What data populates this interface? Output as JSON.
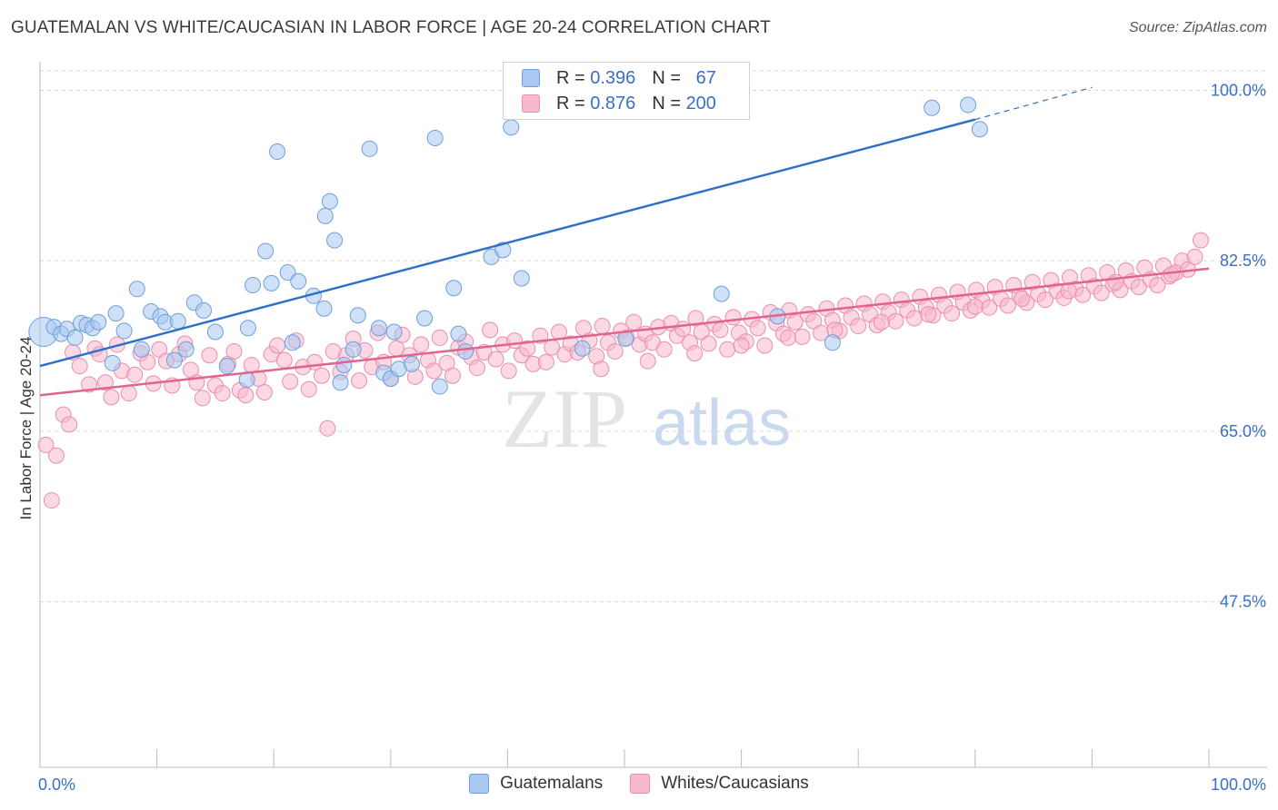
{
  "header": {
    "title": "GUATEMALAN VS WHITE/CAUCASIAN IN LABOR FORCE | AGE 20-24 CORRELATION CHART",
    "source": "Source: ZipAtlas.com"
  },
  "watermark": {
    "zip": "ZIP",
    "atlas": "atlas"
  },
  "legend": {
    "rows": [
      {
        "r_label": "R =",
        "r_value": "0.396",
        "n_label": "N =",
        "n_value": "67"
      },
      {
        "r_label": "R =",
        "r_value": "0.876",
        "n_label": "N =",
        "n_value": "200"
      }
    ]
  },
  "bottom_legend": [
    "Guatemalans",
    "Whites/Caucasians"
  ],
  "colors": {
    "blue_fill": "#a8c8f0",
    "blue_stroke": "#6f9fdc",
    "blue_line": "#2f6fc9",
    "pink_fill": "#f7b8cc",
    "pink_stroke": "#ea8fae",
    "pink_line": "#e0648f",
    "tick_text": "#3a6fc4",
    "grid": "#d9d9d9"
  },
  "chart_data": {
    "type": "scatter",
    "title": "GUATEMALAN VS WHITE/CAUCASIAN IN LABOR FORCE | AGE 20-24 CORRELATION CHART",
    "xlabel": "",
    "ylabel": "In Labor Force | Age 20-24",
    "xlim": [
      0,
      100
    ],
    "ylim": [
      30.5,
      102
    ],
    "x_tick_labels": [
      "0.0%",
      "100.0%"
    ],
    "y_ticks": [
      47.5,
      65.0,
      82.5,
      100.0
    ],
    "y_tick_labels": [
      "47.5%",
      "65.0%",
      "82.5%",
      "100.0%"
    ],
    "grid": true,
    "legend_position": "top-center",
    "series": [
      {
        "name": "Guatemalans",
        "color": "#a8c8f0",
        "trend": {
          "x0": 0,
          "y0": 71.7,
          "x1": 80,
          "y1": 97.0,
          "dashed_to_x": 90,
          "dashed_to_y": 100.3
        },
        "points": [
          [
            0.3,
            75.2
          ],
          [
            1.2,
            75.7
          ],
          [
            1.8,
            75.0
          ],
          [
            2.3,
            75.5
          ],
          [
            3.5,
            76.1
          ],
          [
            4.0,
            75.9
          ],
          [
            4.5,
            75.6
          ],
          [
            5.0,
            76.2
          ],
          [
            3.0,
            74.6
          ],
          [
            6.5,
            77.1
          ],
          [
            7.2,
            75.3
          ],
          [
            6.2,
            72.0
          ],
          [
            8.3,
            79.6
          ],
          [
            8.7,
            73.4
          ],
          [
            9.5,
            77.3
          ],
          [
            10.3,
            76.8
          ],
          [
            10.7,
            76.2
          ],
          [
            11.5,
            72.3
          ],
          [
            11.8,
            76.3
          ],
          [
            12.5,
            73.4
          ],
          [
            13.2,
            78.2
          ],
          [
            14.0,
            77.4
          ],
          [
            15.0,
            75.2
          ],
          [
            16.0,
            71.7
          ],
          [
            17.7,
            70.3
          ],
          [
            17.8,
            75.6
          ],
          [
            18.2,
            80.0
          ],
          [
            19.3,
            83.5
          ],
          [
            19.8,
            80.2
          ],
          [
            20.3,
            93.7
          ],
          [
            21.2,
            81.3
          ],
          [
            21.6,
            74.1
          ],
          [
            22.1,
            80.4
          ],
          [
            23.4,
            78.9
          ],
          [
            24.4,
            87.1
          ],
          [
            24.8,
            88.6
          ],
          [
            24.3,
            77.6
          ],
          [
            25.2,
            84.6
          ],
          [
            25.7,
            70.0
          ],
          [
            26.0,
            71.8
          ],
          [
            26.8,
            73.4
          ],
          [
            27.2,
            76.9
          ],
          [
            28.2,
            94.0
          ],
          [
            29.0,
            75.6
          ],
          [
            29.4,
            71.0
          ],
          [
            30.0,
            70.4
          ],
          [
            30.3,
            75.2
          ],
          [
            30.7,
            71.4
          ],
          [
            31.8,
            71.9
          ],
          [
            32.9,
            76.6
          ],
          [
            33.8,
            95.1
          ],
          [
            34.2,
            69.6
          ],
          [
            35.4,
            79.7
          ],
          [
            35.8,
            75.0
          ],
          [
            36.4,
            73.2
          ],
          [
            38.6,
            82.9
          ],
          [
            39.6,
            83.6
          ],
          [
            40.3,
            96.2
          ],
          [
            41.2,
            80.7
          ],
          [
            46.4,
            73.5
          ],
          [
            50.1,
            74.5
          ],
          [
            58.3,
            79.1
          ],
          [
            63.1,
            76.8
          ],
          [
            67.8,
            74.1
          ],
          [
            76.3,
            98.2
          ],
          [
            79.4,
            98.5
          ],
          [
            80.4,
            96.0
          ]
        ]
      },
      {
        "name": "Whites/Caucasians",
        "color": "#f7b8cc",
        "trend": {
          "x0": 0,
          "y0": 68.7,
          "x1": 100,
          "y1": 81.7
        },
        "points": [
          [
            0.5,
            63.6
          ],
          [
            1.0,
            57.9
          ],
          [
            1.4,
            62.5
          ],
          [
            2.0,
            66.7
          ],
          [
            2.5,
            65.7
          ],
          [
            2.8,
            73.1
          ],
          [
            3.4,
            71.7
          ],
          [
            4.2,
            69.8
          ],
          [
            4.7,
            73.5
          ],
          [
            5.1,
            72.9
          ],
          [
            5.6,
            70.0
          ],
          [
            6.1,
            68.5
          ],
          [
            6.6,
            73.9
          ],
          [
            7.0,
            71.2
          ],
          [
            7.6,
            68.9
          ],
          [
            8.1,
            70.8
          ],
          [
            8.6,
            73.0
          ],
          [
            9.2,
            72.1
          ],
          [
            9.7,
            69.9
          ],
          [
            10.2,
            73.4
          ],
          [
            10.8,
            72.2
          ],
          [
            11.3,
            69.7
          ],
          [
            11.9,
            72.9
          ],
          [
            12.4,
            74.0
          ],
          [
            12.9,
            71.3
          ],
          [
            13.4,
            70.0
          ],
          [
            13.9,
            68.4
          ],
          [
            14.5,
            72.8
          ],
          [
            15.0,
            69.7
          ],
          [
            15.6,
            68.9
          ],
          [
            16.1,
            71.9
          ],
          [
            16.6,
            73.2
          ],
          [
            17.1,
            69.2
          ],
          [
            17.6,
            68.7
          ],
          [
            18.1,
            71.8
          ],
          [
            18.7,
            70.4
          ],
          [
            19.2,
            69.0
          ],
          [
            19.8,
            72.9
          ],
          [
            20.3,
            73.8
          ],
          [
            20.9,
            72.3
          ],
          [
            21.4,
            70.1
          ],
          [
            21.9,
            74.3
          ],
          [
            22.5,
            71.6
          ],
          [
            23.0,
            69.3
          ],
          [
            23.5,
            72.1
          ],
          [
            24.1,
            70.7
          ],
          [
            24.6,
            65.3
          ],
          [
            25.1,
            73.2
          ],
          [
            25.7,
            71.1
          ],
          [
            26.2,
            72.8
          ],
          [
            26.8,
            74.5
          ],
          [
            27.3,
            70.2
          ],
          [
            27.8,
            73.3
          ],
          [
            28.4,
            71.6
          ],
          [
            28.9,
            75.1
          ],
          [
            29.4,
            72.1
          ],
          [
            30.0,
            70.4
          ],
          [
            30.5,
            73.5
          ],
          [
            31.0,
            74.9
          ],
          [
            31.6,
            72.8
          ],
          [
            32.1,
            70.6
          ],
          [
            32.6,
            73.9
          ],
          [
            33.2,
            72.3
          ],
          [
            33.7,
            71.2
          ],
          [
            34.2,
            74.6
          ],
          [
            34.8,
            72.0
          ],
          [
            35.3,
            70.7
          ],
          [
            35.8,
            73.6
          ],
          [
            36.4,
            74.2
          ],
          [
            36.9,
            72.6
          ],
          [
            37.4,
            71.5
          ],
          [
            38.0,
            73.1
          ],
          [
            38.5,
            75.4
          ],
          [
            39.0,
            72.4
          ],
          [
            39.6,
            73.9
          ],
          [
            40.1,
            71.2
          ],
          [
            40.6,
            74.3
          ],
          [
            41.2,
            72.8
          ],
          [
            41.7,
            73.5
          ],
          [
            42.2,
            71.9
          ],
          [
            42.8,
            74.8
          ],
          [
            43.3,
            72.1
          ],
          [
            43.8,
            73.6
          ],
          [
            44.4,
            75.2
          ],
          [
            44.9,
            72.9
          ],
          [
            45.4,
            74.0
          ],
          [
            46.0,
            73.1
          ],
          [
            46.5,
            75.6
          ],
          [
            47.0,
            74.3
          ],
          [
            47.6,
            72.7
          ],
          [
            48.1,
            75.8
          ],
          [
            48.6,
            74.1
          ],
          [
            49.2,
            73.2
          ],
          [
            49.7,
            75.3
          ],
          [
            50.2,
            74.6
          ],
          [
            50.8,
            76.2
          ],
          [
            51.3,
            73.9
          ],
          [
            51.8,
            75.0
          ],
          [
            52.4,
            74.1
          ],
          [
            52.9,
            75.7
          ],
          [
            53.4,
            73.4
          ],
          [
            54.0,
            76.1
          ],
          [
            54.5,
            74.8
          ],
          [
            55.0,
            75.5
          ],
          [
            55.6,
            74.1
          ],
          [
            56.1,
            76.6
          ],
          [
            56.6,
            75.2
          ],
          [
            57.2,
            74.0
          ],
          [
            57.7,
            76.0
          ],
          [
            58.2,
            75.4
          ],
          [
            58.8,
            73.4
          ],
          [
            59.3,
            76.7
          ],
          [
            59.8,
            75.1
          ],
          [
            60.4,
            74.2
          ],
          [
            60.9,
            76.5
          ],
          [
            61.4,
            75.6
          ],
          [
            62.0,
            73.8
          ],
          [
            62.5,
            77.2
          ],
          [
            63.0,
            76.1
          ],
          [
            63.6,
            75.0
          ],
          [
            64.1,
            77.4
          ],
          [
            64.6,
            76.2
          ],
          [
            65.2,
            74.7
          ],
          [
            65.7,
            77.0
          ],
          [
            66.2,
            76.3
          ],
          [
            66.8,
            75.1
          ],
          [
            67.3,
            77.6
          ],
          [
            67.8,
            76.4
          ],
          [
            68.4,
            75.3
          ],
          [
            68.9,
            77.9
          ],
          [
            69.4,
            76.7
          ],
          [
            70.0,
            75.8
          ],
          [
            70.5,
            78.1
          ],
          [
            71.0,
            77.0
          ],
          [
            71.6,
            75.9
          ],
          [
            72.1,
            78.3
          ],
          [
            72.6,
            77.2
          ],
          [
            73.2,
            76.3
          ],
          [
            73.7,
            78.5
          ],
          [
            74.2,
            77.4
          ],
          [
            74.8,
            76.6
          ],
          [
            75.3,
            78.8
          ],
          [
            75.8,
            77.7
          ],
          [
            76.4,
            76.9
          ],
          [
            76.9,
            79.0
          ],
          [
            77.4,
            77.9
          ],
          [
            78.0,
            77.1
          ],
          [
            78.5,
            79.3
          ],
          [
            79.0,
            78.2
          ],
          [
            79.6,
            77.4
          ],
          [
            80.1,
            79.5
          ],
          [
            80.6,
            78.4
          ],
          [
            81.2,
            77.7
          ],
          [
            81.7,
            79.8
          ],
          [
            82.2,
            78.6
          ],
          [
            82.8,
            77.9
          ],
          [
            83.3,
            80.0
          ],
          [
            83.8,
            78.9
          ],
          [
            84.4,
            78.2
          ],
          [
            84.9,
            80.3
          ],
          [
            85.4,
            79.1
          ],
          [
            86.0,
            78.5
          ],
          [
            86.5,
            80.5
          ],
          [
            87.0,
            79.4
          ],
          [
            87.6,
            78.7
          ],
          [
            88.1,
            80.8
          ],
          [
            88.6,
            79.6
          ],
          [
            89.2,
            79.0
          ],
          [
            89.7,
            81.0
          ],
          [
            90.2,
            79.9
          ],
          [
            90.8,
            79.2
          ],
          [
            91.3,
            81.3
          ],
          [
            91.8,
            80.1
          ],
          [
            92.4,
            79.5
          ],
          [
            92.9,
            81.5
          ],
          [
            93.4,
            80.4
          ],
          [
            94.0,
            79.8
          ],
          [
            94.5,
            81.8
          ],
          [
            95.0,
            80.6
          ],
          [
            95.6,
            80.0
          ],
          [
            96.1,
            82.0
          ],
          [
            96.6,
            80.9
          ],
          [
            97.2,
            81.3
          ],
          [
            97.7,
            82.5
          ],
          [
            98.2,
            81.6
          ],
          [
            98.8,
            82.9
          ],
          [
            99.3,
            84.6
          ],
          [
            96.8,
            81.1
          ],
          [
            92.0,
            80.3
          ],
          [
            88.0,
            79.4
          ],
          [
            84.0,
            78.6
          ],
          [
            80.0,
            77.8
          ],
          [
            76.0,
            77.0
          ],
          [
            72.0,
            76.2
          ],
          [
            68.0,
            75.4
          ],
          [
            64.0,
            74.6
          ],
          [
            60.0,
            73.8
          ],
          [
            56.0,
            73.0
          ],
          [
            52.0,
            72.2
          ],
          [
            48.0,
            71.4
          ]
        ]
      }
    ]
  }
}
